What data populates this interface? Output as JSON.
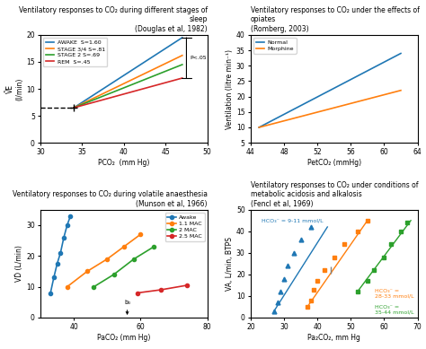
{
  "chart_data": [
    {
      "type": "line",
      "title": "Ventilatory responses to CO₂ during different stages of sleep\n(Douglas et al, 1982)",
      "x_label": "PCO₂  (mm Hg)",
      "y_label": "ṼE\n(l/min)",
      "x": [
        34,
        47
      ],
      "series": [
        {
          "name": "AWAKE  S=1.60",
          "values": [
            6.5,
            19.5
          ]
        },
        {
          "name": "STAGE 3/4 S=.81",
          "values": [
            6.5,
            16.2
          ]
        },
        {
          "name": "STAGE 2 S=.69",
          "values": [
            6.5,
            14.5
          ]
        },
        {
          "name": "REM  S=.45",
          "values": [
            6.5,
            12.0
          ]
        }
      ],
      "reference_lines": [
        {
          "x": [
            30,
            34.0
          ],
          "values": [
            6.5,
            6.5
          ],
          "line_style": "dashed",
          "marker": "plus"
        }
      ],
      "annotations": [
        {
          "text": "P<.05",
          "type": "bracket",
          "x": 47.5,
          "y": [
            12.0,
            19.5
          ]
        }
      ],
      "legend": "upper left",
      "xlim": [
        30,
        50
      ],
      "ylim": [
        0,
        20
      ],
      "xticks": [
        30,
        35,
        40,
        45,
        50
      ],
      "yticks": [
        0,
        5,
        10,
        15,
        20
      ]
    },
    {
      "type": "line",
      "title": "Ventilatory responses to CO₂ under the effects of opiates\n(Romberg, 2003)",
      "x_label": "PetCO₂ (mmHg)",
      "y_label": "Ventilation (litre min⁻¹)",
      "x": [
        45,
        62
      ],
      "series": [
        {
          "name": "Normal",
          "values": [
            10,
            34
          ]
        },
        {
          "name": "Morphine",
          "values": [
            10,
            22
          ]
        }
      ],
      "legend": "upper left",
      "xlim": [
        44,
        64
      ],
      "ylim": [
        5,
        40
      ],
      "xticks": [
        44,
        48,
        52,
        56,
        60,
        64
      ],
      "yticks": [
        5,
        10,
        15,
        20,
        25,
        30,
        35,
        40
      ]
    },
    {
      "type": "line",
      "title": "Ventilatory responses to CO₂ during volatile anaesthesia\n(Munson et al, 1966)",
      "x_label": "PaCO₂ (mm Hg)",
      "y_label": "VḊ (L/min)",
      "marker": "circle",
      "series": [
        {
          "name": "Awake",
          "x": [
            33,
            34,
            35,
            36,
            37,
            38,
            39
          ],
          "values": [
            8,
            13,
            17.5,
            21,
            26,
            30,
            33
          ]
        },
        {
          "name": "1.1 MAC",
          "x": [
            38,
            44,
            50,
            55,
            60
          ],
          "values": [
            10,
            15,
            19,
            23,
            27
          ]
        },
        {
          "name": "2 MAC",
          "x": [
            46,
            52,
            58,
            64
          ],
          "values": [
            10,
            14,
            19,
            23
          ]
        },
        {
          "name": "2.5 MAC",
          "x": [
            59,
            66,
            74
          ],
          "values": [
            8,
            9,
            10.5
          ]
        }
      ],
      "annotations": [
        {
          "text": "b₀",
          "x": 56,
          "y": 0,
          "arrow": true
        }
      ],
      "legend": "upper right",
      "xlim": [
        30,
        80
      ],
      "ylim": [
        0,
        35
      ],
      "xticks": [
        40,
        60,
        80
      ],
      "yticks": [
        0,
        10,
        20,
        30
      ]
    },
    {
      "type": "scatter",
      "title": "Ventilatory responses to CO₂ under conditions of metabolic acidosis and alkalosis\n(Fencl et al, 1969)",
      "x_label": "Pa₂CO₂, mm Hg",
      "y_label": "VA, L/min, BTPS",
      "series": [
        {
          "name": "HCO₃⁻ = 9-11 mmol/L",
          "marker": "triangle",
          "x": [
            27,
            28,
            29,
            30,
            31,
            33,
            35,
            38
          ],
          "values": [
            3,
            7,
            12,
            18,
            24,
            30,
            36,
            42
          ],
          "line": {
            "x": [
              27,
              43
            ],
            "values": [
              3,
              42
            ]
          }
        },
        {
          "name": "HCO₃⁻ =\n28-33 mmol/L",
          "marker": "square",
          "x": [
            37,
            38,
            39,
            40,
            42,
            45,
            48,
            52,
            55
          ],
          "values": [
            5,
            8,
            13,
            17,
            22,
            28,
            34,
            40,
            45
          ],
          "line": {
            "x": [
              37,
              55
            ],
            "values": [
              5,
              45
            ]
          }
        },
        {
          "name": "HCO₃⁻ =\n35-44 mmol/L",
          "marker": "square",
          "x": [
            52,
            55,
            57,
            60,
            62,
            65,
            67
          ],
          "values": [
            12,
            17,
            22,
            28,
            34,
            40,
            44
          ],
          "line": {
            "x": [
              52,
              68
            ],
            "values": [
              12,
              45
            ]
          }
        }
      ],
      "extra_marks": [
        {
          "x": 44,
          "y": 22,
          "marker": "vline"
        }
      ],
      "xlim": [
        20,
        70
      ],
      "ylim": [
        0,
        50
      ],
      "xticks": [
        20,
        30,
        40,
        50,
        60,
        70
      ],
      "yticks": [
        0,
        10,
        20,
        30,
        40,
        50
      ]
    }
  ]
}
